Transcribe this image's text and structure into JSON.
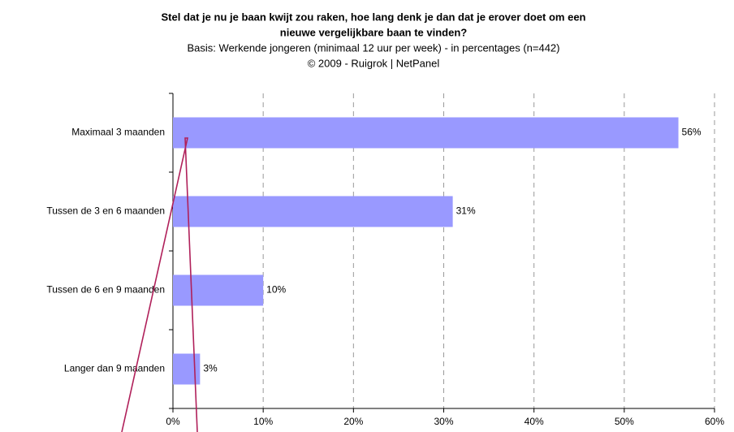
{
  "chart_data": {
    "type": "bar",
    "orientation": "horizontal",
    "title": [
      "Stel dat je nu je baan kwijt zou raken, hoe lang denk je dan dat je erover doet om een",
      "nieuwe vergelijkbare baan te vinden?"
    ],
    "subtitle": [
      "Basis: Werkende jongeren (minimaal 12 uur per week) - in percentages (n=442)",
      "©  2009 - Ruigrok | NetPanel"
    ],
    "categories": [
      "Maximaal 3 maanden",
      "Tussen de 3 en 6 maanden",
      "Tussen de 6 en 9 maanden",
      "Langer dan 9 maanden"
    ],
    "values": [
      56,
      31,
      10,
      3
    ],
    "value_labels": [
      "56%",
      "31%",
      "10%",
      "3%"
    ],
    "color": "#9999ff",
    "xlim": [
      0,
      60
    ],
    "xticks": [
      {
        "value": 0,
        "label": "0%"
      },
      {
        "value": 10,
        "label": "10%"
      },
      {
        "value": 20,
        "label": "20%"
      },
      {
        "value": 30,
        "label": "30%"
      },
      {
        "value": 40,
        "label": "40%"
      },
      {
        "value": 50,
        "label": "50%"
      },
      {
        "value": 60,
        "label": "60%"
      }
    ],
    "grid": true
  }
}
